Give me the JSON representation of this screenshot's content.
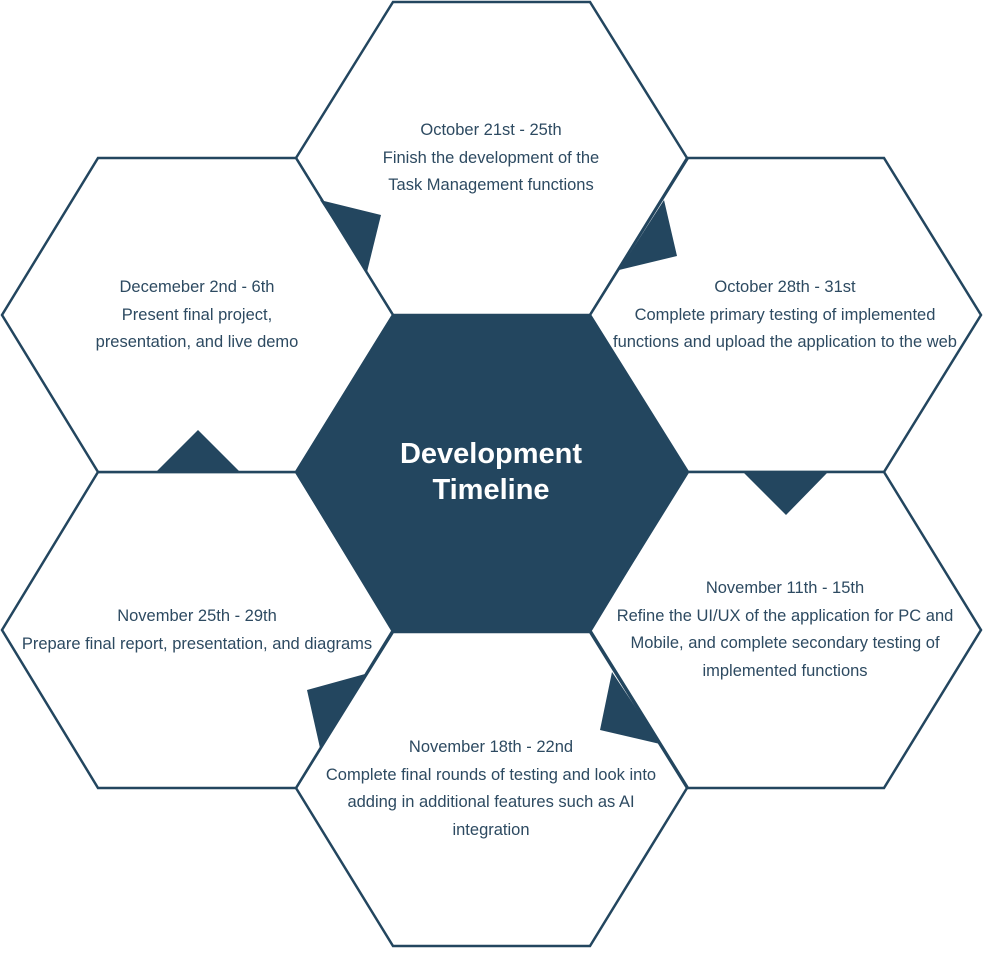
{
  "center": {
    "line1": "Development",
    "line2": "Timeline"
  },
  "steps": [
    {
      "date": "October 21st - 25th",
      "lines": [
        "Finish the development of the",
        "Task Management functions"
      ]
    },
    {
      "date": "October 28th - 31st",
      "lines": [
        "Complete primary testing of implemented",
        "functions and upload the application to the web"
      ]
    },
    {
      "date": "November 11th - 15th",
      "lines": [
        "Refine the UI/UX of the application for PC and",
        "Mobile, and complete secondary testing of",
        "implemented functions"
      ]
    },
    {
      "date": "November 18th - 22nd",
      "lines": [
        "Complete final rounds of testing and look into",
        "adding in additional features such as AI",
        "integration"
      ]
    },
    {
      "date": "November 25th - 29th",
      "lines": [
        "Prepare final report, presentation, and diagrams"
      ]
    },
    {
      "date": "Decemeber 2nd - 6th",
      "lines": [
        "Present final project,",
        "presentation, and live demo"
      ]
    }
  ],
  "colors": {
    "primary": "#23465f",
    "text": "#2d4a61",
    "background": "#ffffff"
  }
}
